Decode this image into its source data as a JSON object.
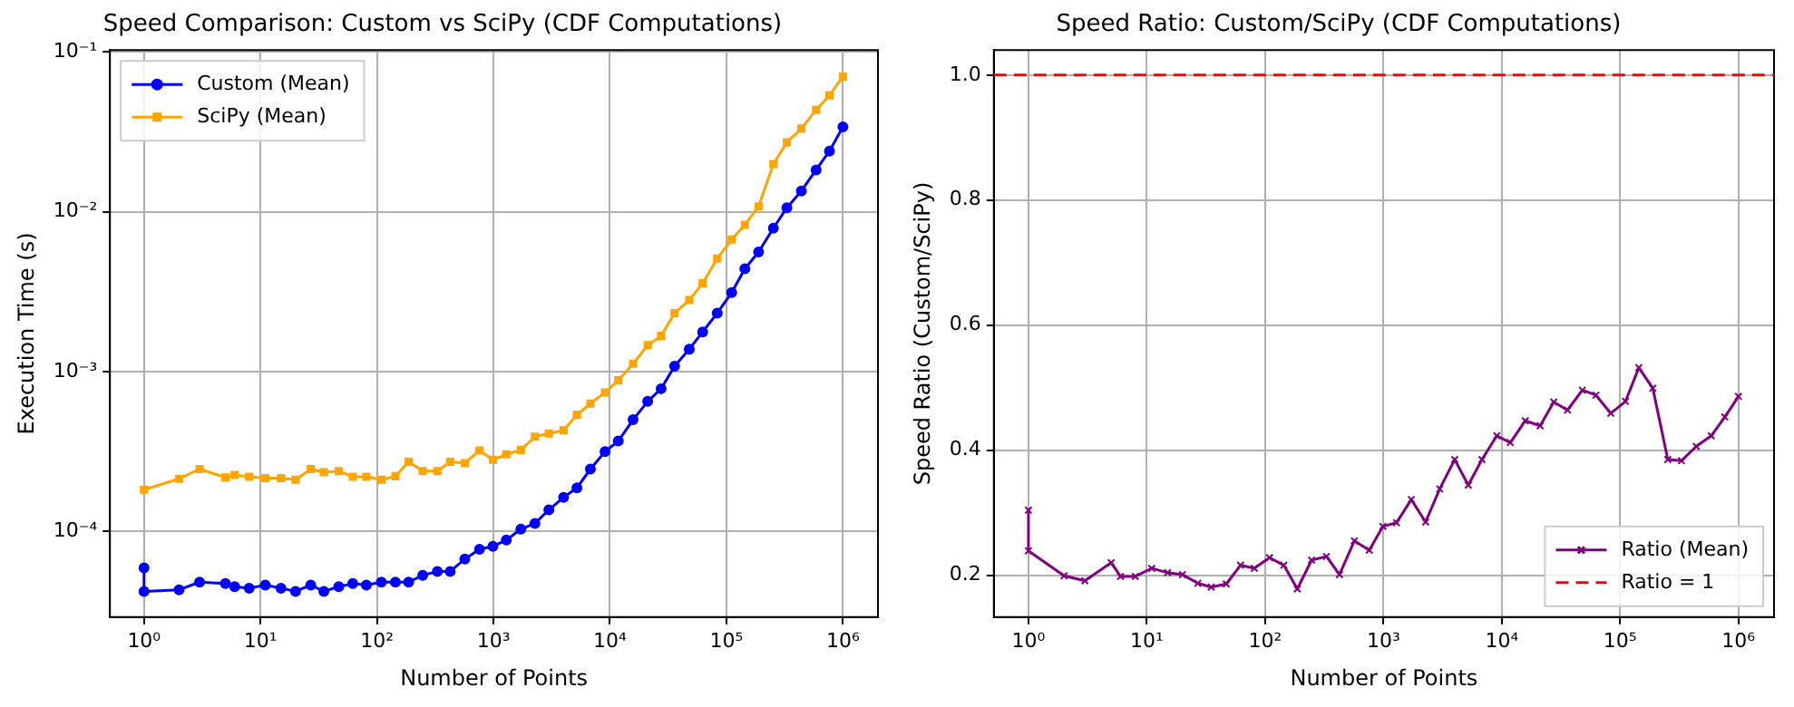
{
  "chart_data": [
    {
      "type": "line",
      "title": "Speed Comparison: Custom vs SciPy (CDF Computations)",
      "xlabel": "Number of Points",
      "ylabel": "Execution Time (s)",
      "log": "xy",
      "grid": true,
      "legend": "top left",
      "x": [
        1,
        1,
        2,
        3,
        5,
        6,
        8,
        11,
        15,
        20,
        27,
        35,
        47,
        62,
        81,
        109,
        144,
        187,
        247,
        330,
        425,
        568,
        759,
        989,
        1290,
        1720,
        2270,
        2990,
        4000,
        5210,
        6800,
        9080,
        11800,
        15800,
        21100,
        27500,
        35900,
        48000,
        62500,
        83400,
        111000,
        144000,
        189000,
        253000,
        330000,
        440000,
        589000,
        767000,
        1000000
      ],
      "xlim": [
        0.51,
        2000000
      ],
      "xticks": [
        {
          "value": 1,
          "label": "10⁰"
        },
        {
          "value": 10,
          "label": "10¹"
        },
        {
          "value": 100,
          "label": "10²"
        },
        {
          "value": 1000,
          "label": "10³"
        },
        {
          "value": 10000,
          "label": "10⁴"
        },
        {
          "value": 100000,
          "label": "10⁵"
        },
        {
          "value": 1000000,
          "label": "10⁶"
        }
      ],
      "ylim": [
        2.9e-05,
        0.103
      ],
      "yticks": [
        {
          "value": 0.0001,
          "label": "10⁻⁴"
        },
        {
          "value": 0.001,
          "label": "10⁻³"
        },
        {
          "value": 0.01,
          "label": "10⁻²"
        },
        {
          "value": 0.1,
          "label": "10⁻¹"
        }
      ],
      "series": [
        {
          "name": "Custom (Mean)",
          "color": "#0000ff",
          "marker": "circle",
          "values": [
            5.9e-05,
            4.2e-05,
            4.3e-05,
            4.8e-05,
            4.7e-05,
            4.5e-05,
            4.4e-05,
            4.6e-05,
            4.4e-05,
            4.2e-05,
            4.6e-05,
            4.2e-05,
            4.5e-05,
            4.7e-05,
            4.6e-05,
            4.8e-05,
            4.8e-05,
            4.8e-05,
            5.3e-05,
            5.6e-05,
            5.6e-05,
            6.7e-05,
            7.7e-05,
            8.05e-05,
            8.8e-05,
            0.000103,
            0.000112,
            0.000136,
            0.000163,
            0.000187,
            0.000245,
            0.000315,
            0.000367,
            0.000499,
            0.00065,
            0.00078,
            0.00108,
            0.00138,
            0.00177,
            0.00232,
            0.00312,
            0.0044,
            0.0056,
            0.0079,
            0.0106,
            0.0135,
            0.0183,
            0.024,
            0.034
          ]
        },
        {
          "name": "SciPy (Mean)",
          "color": "#ffa500",
          "marker": "square",
          "values": [
            null,
            0.000182,
            0.000213,
            0.000245,
            0.000217,
            0.000225,
            0.000219,
            0.000215,
            0.000215,
            0.00021,
            0.000245,
            0.000234,
            0.000238,
            0.000219,
            0.000219,
            0.00021,
            0.000221,
            0.000272,
            0.000238,
            0.000238,
            0.000272,
            0.000267,
            0.00032,
            0.00028,
            0.000303,
            0.000323,
            0.000391,
            0.000409,
            0.000428,
            0.000536,
            0.00063,
            0.00074,
            0.00088,
            0.00112,
            0.00146,
            0.00167,
            0.00232,
            0.0028,
            0.00357,
            0.0051,
            0.0067,
            0.0083,
            0.0108,
            0.0199,
            0.0272,
            0.0332,
            0.0435,
            0.0536,
            0.0703
          ]
        }
      ]
    },
    {
      "type": "line",
      "title": "Speed Ratio: Custom/SciPy (CDF Computations)",
      "xlabel": "Number of Points",
      "ylabel": "Speed Ratio (Custom/SciPy)",
      "log": "x",
      "grid": true,
      "legend": "bottom right",
      "x": [
        1,
        1,
        2,
        3,
        5,
        6,
        8,
        11,
        15,
        20,
        27,
        35,
        47,
        62,
        81,
        109,
        144,
        187,
        247,
        330,
        425,
        568,
        759,
        989,
        1290,
        1720,
        2270,
        2990,
        4000,
        5210,
        6800,
        9080,
        11800,
        15800,
        21100,
        27500,
        35900,
        48000,
        62500,
        83400,
        111000,
        144000,
        189000,
        253000,
        330000,
        440000,
        589000,
        767000,
        1000000
      ],
      "xlim": [
        0.51,
        2000000
      ],
      "xticks": [
        {
          "value": 1,
          "label": "10⁰"
        },
        {
          "value": 10,
          "label": "10¹"
        },
        {
          "value": 100,
          "label": "10²"
        },
        {
          "value": 1000,
          "label": "10³"
        },
        {
          "value": 10000,
          "label": "10⁴"
        },
        {
          "value": 100000,
          "label": "10⁵"
        },
        {
          "value": 1000000,
          "label": "10⁶"
        }
      ],
      "ylim": [
        0.133,
        1.04
      ],
      "yticks": [
        0.2,
        0.4,
        0.6,
        0.8,
        {
          "value": 1,
          "label": "1.0"
        }
      ],
      "series": [
        {
          "name": "Ratio (Mean)",
          "color": "#800080",
          "marker": "cross",
          "values": [
            0.304,
            0.239,
            0.199,
            0.191,
            0.22,
            0.198,
            0.198,
            0.211,
            0.204,
            0.201,
            0.187,
            0.181,
            0.186,
            0.216,
            0.211,
            0.228,
            0.216,
            0.178,
            0.224,
            0.23,
            0.201,
            0.255,
            0.24,
            0.278,
            0.284,
            0.321,
            0.285,
            0.338,
            0.385,
            0.344,
            0.385,
            0.423,
            0.412,
            0.447,
            0.439,
            0.477,
            0.464,
            0.496,
            0.488,
            0.459,
            0.478,
            0.532,
            0.499,
            0.385,
            0.383,
            0.406,
            0.423,
            0.453,
            0.486
          ]
        }
      ],
      "ref_lines": [
        {
          "axis": "y",
          "value": 1,
          "label": "Ratio = 1",
          "color": "#ff0000",
          "line_style": "dashed"
        }
      ]
    }
  ]
}
